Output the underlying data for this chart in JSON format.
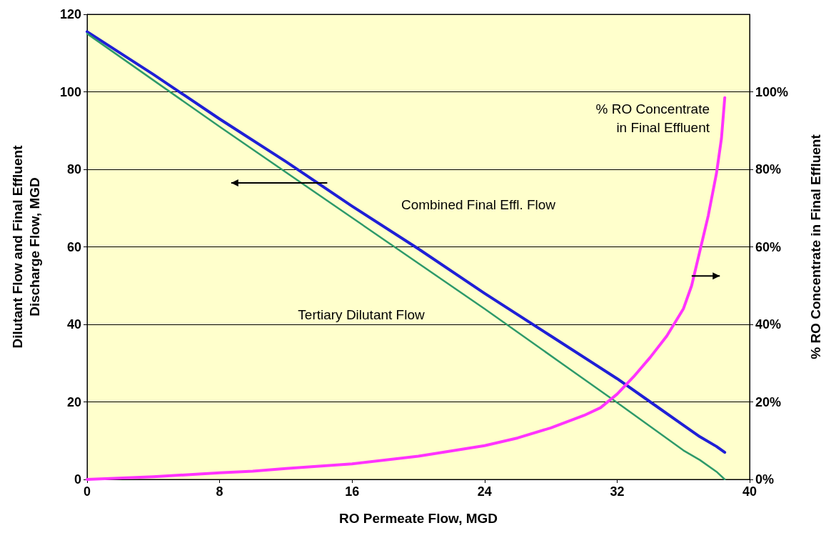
{
  "chart_data": {
    "type": "line",
    "xlabel": "RO Permeate Flow, MGD",
    "ylabel": "Dilutant Flow and Final Effluent\nDischarge Flow, MGD",
    "y2label": "% RO Concentrate in Final Effluent",
    "xlim": [
      0,
      40
    ],
    "xticks": [
      0,
      8,
      16,
      24,
      32,
      40
    ],
    "ylim": [
      0,
      120
    ],
    "yticks": [
      0,
      20,
      40,
      60,
      80,
      100,
      120
    ],
    "y2lim": [
      0,
      120
    ],
    "y2ticks": [
      {
        "value": 0,
        "label": "0%"
      },
      {
        "value": 20,
        "label": "20%"
      },
      {
        "value": 40,
        "label": "40%"
      },
      {
        "value": 60,
        "label": "60%"
      },
      {
        "value": 80,
        "label": "80%"
      },
      {
        "value": 100,
        "label": "100%"
      }
    ],
    "grid": "y",
    "marker": "none",
    "line_style": "solid",
    "series": [
      {
        "color": "#1f1fd6",
        "x": [
          0,
          4,
          8,
          12,
          16,
          20,
          24,
          28,
          32,
          34,
          36,
          37,
          38,
          38.5
        ],
        "values": [
          115.5,
          104.5,
          93,
          82,
          70.5,
          59.5,
          48,
          37,
          26,
          20,
          14,
          11,
          8.5,
          7
        ]
      },
      {
        "color": "#2e9a6a",
        "x": [
          0,
          8,
          16,
          24,
          32,
          36,
          37,
          38,
          38.5
        ],
        "values": [
          115,
          91,
          67.5,
          44,
          19.8,
          7.5,
          5,
          2,
          0
        ]
      },
      {
        "color": "#ff33ff",
        "axis": "y2",
        "x": [
          0,
          4,
          8,
          10,
          12,
          16,
          20,
          24,
          26,
          28,
          30,
          31,
          32,
          33,
          34,
          35,
          36,
          36.5,
          37,
          37.5,
          38,
          38.3,
          38.5
        ],
        "values": [
          0,
          0.7,
          1.7,
          2.1,
          2.8,
          4,
          6,
          8.7,
          10.7,
          13.3,
          16.5,
          18.5,
          22,
          26.5,
          31.5,
          37,
          44,
          50,
          59,
          68,
          79,
          88,
          98.5
        ]
      }
    ],
    "annotations": [
      "% RO Concentrate\nin Final Effluent",
      "Combined Final Effl. Flow",
      "Tertiary Dilutant Flow"
    ]
  }
}
